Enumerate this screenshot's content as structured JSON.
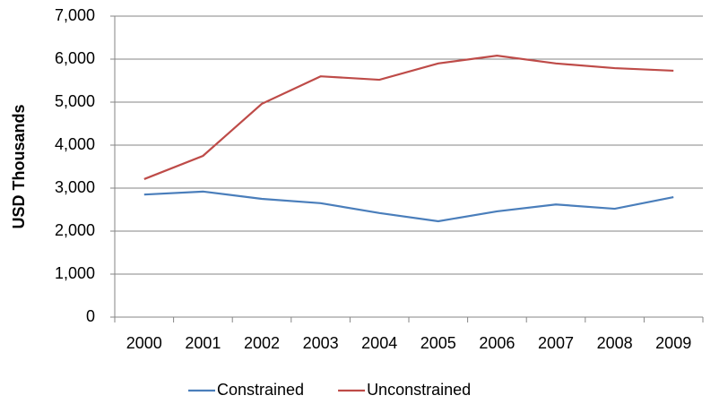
{
  "chart_data": {
    "type": "line",
    "y_label": "USD Thousands",
    "categories": [
      "2000",
      "2001",
      "2002",
      "2003",
      "2004",
      "2005",
      "2006",
      "2007",
      "2008",
      "2009"
    ],
    "series": [
      {
        "name": "Constrained",
        "color": "#4a7ebb",
        "values": [
          2850,
          2920,
          2750,
          2650,
          2420,
          2230,
          2460,
          2620,
          2520,
          2790
        ]
      },
      {
        "name": "Unconstrained",
        "color": "#be4b48",
        "values": [
          3210,
          3750,
          4960,
          5600,
          5520,
          5900,
          6080,
          5900,
          5790,
          5730
        ]
      }
    ],
    "ylim": [
      0,
      7000
    ],
    "yticks": [
      0,
      {
        "value": 1000,
        "label": "1,000"
      },
      {
        "value": 2000,
        "label": "2,000"
      },
      {
        "value": 3000,
        "label": "3,000"
      },
      {
        "value": 4000,
        "label": "4,000"
      },
      {
        "value": 5000,
        "label": "5,000"
      },
      {
        "value": 6000,
        "label": "6,000"
      },
      {
        "value": 7000,
        "label": "7,000"
      }
    ],
    "grid": true,
    "legend": "bottom"
  }
}
